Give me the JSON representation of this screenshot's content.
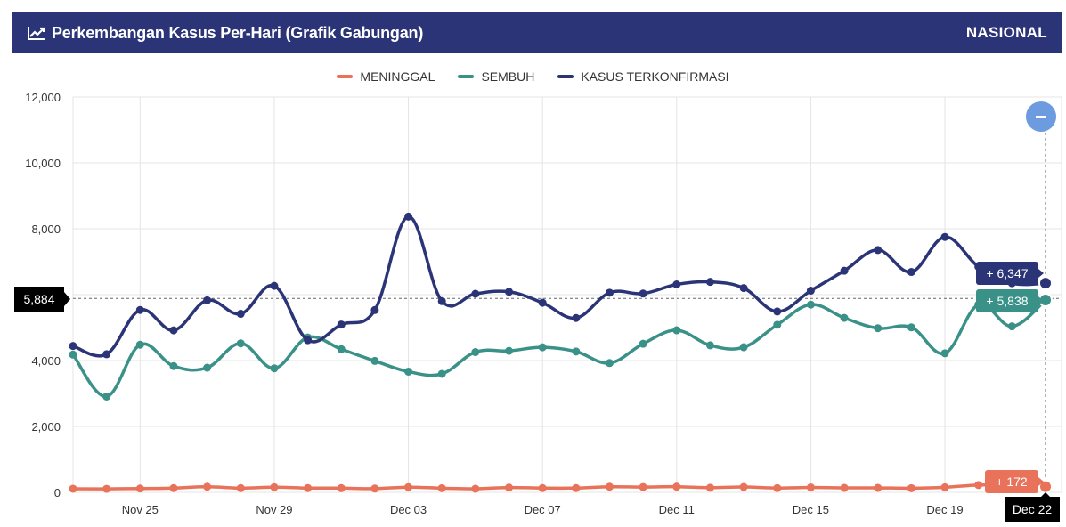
{
  "header": {
    "title": "Perkembangan Kasus Per-Hari (Grafik Gabungan)",
    "region": "NASIONAL",
    "icon": "line-chart-icon"
  },
  "controls": {
    "zoom_out_icon": "minus-icon"
  },
  "crosshair": {
    "y_value_label": "5,884",
    "x_value_label": "Dec 22"
  },
  "chart_data": {
    "type": "line",
    "x": [
      "Nov 23",
      "Nov 24",
      "Nov 25",
      "Nov 26",
      "Nov 27",
      "Nov 28",
      "Nov 29",
      "Nov 30",
      "Dec 01",
      "Dec 02",
      "Dec 03",
      "Dec 04",
      "Dec 05",
      "Dec 06",
      "Dec 07",
      "Dec 08",
      "Dec 09",
      "Dec 10",
      "Dec 11",
      "Dec 12",
      "Dec 13",
      "Dec 14",
      "Dec 15",
      "Dec 16",
      "Dec 17",
      "Dec 18",
      "Dec 19",
      "Dec 20",
      "Dec 21",
      "Dec 22"
    ],
    "x_tick_labels": [
      "Nov 25",
      "Nov 29",
      "Dec 03",
      "Dec 07",
      "Dec 11",
      "Dec 15",
      "Dec 19"
    ],
    "y_tick_labels": [
      "0",
      "2,000",
      "4,000",
      "6,000",
      "8,000",
      "10,000",
      "12,000"
    ],
    "ylim": [
      0,
      12000
    ],
    "grid": true,
    "legend_position": "top-center",
    "series": [
      {
        "name": "MENINGGAL",
        "color": "#e8735a",
        "values": [
          109,
          106,
          116,
          130,
          169,
          128,
          156,
          130,
          127,
          114,
          156,
          126,
          109,
          145,
          130,
          130,
          169,
          159,
          171,
          140,
          161,
          130,
          150,
          136,
          136,
          126,
          152,
          221,
          206,
          172
        ]
      },
      {
        "name": "SEMBUH",
        "color": "#3a9188",
        "values": [
          4182,
          2907,
          4480,
          3832,
          3783,
          4521,
          3765,
          4701,
          4344,
          3989,
          3663,
          3596,
          4256,
          4294,
          4402,
          4274,
          3924,
          4509,
          4918,
          4462,
          4405,
          5086,
          5697,
          5294,
          4980,
          5006,
          4221,
          5696,
          5036,
          5838
        ]
      },
      {
        "name": "KASUS TERKONFIRMASI",
        "color": "#2a3477",
        "values": [
          4442,
          4192,
          5534,
          4917,
          5828,
          5418,
          6267,
          4617,
          5092,
          5533,
          8369,
          5803,
          6027,
          6087,
          5754,
          5292,
          6058,
          6033,
          6310,
          6388,
          6200,
          5489,
          6120,
          6725,
          7354,
          6689,
          7751,
          6848,
          6347,
          6347
        ]
      }
    ],
    "annotations": [
      {
        "series": "KASUS TERKONFIRMASI",
        "text": "+ 6,347",
        "color": "#2a3477"
      },
      {
        "series": "SEMBUH",
        "text": "+ 5,838",
        "color": "#3a9188"
      },
      {
        "series": "MENINGGAL",
        "text": "+ 172",
        "color": "#e8735a"
      }
    ]
  }
}
